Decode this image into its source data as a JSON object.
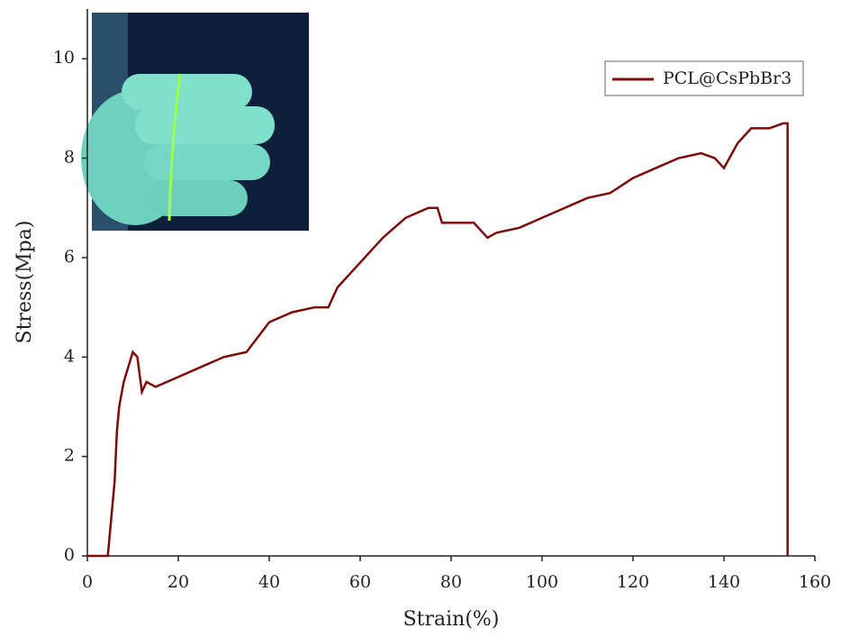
{
  "chart_data": {
    "type": "line",
    "x_label": "Strain(%)",
    "y_label": "Stress(Mpa)",
    "xlim": [
      0,
      160
    ],
    "xticks": [
      0,
      20,
      40,
      60,
      80,
      100,
      120,
      140,
      160
    ],
    "ylim": [
      0,
      11
    ],
    "yticks": [
      0,
      2,
      4,
      6,
      8,
      10
    ],
    "legend": "upper right",
    "series": [
      {
        "name": "PCL@CsPbBr3",
        "color": "#7f0a0a",
        "x": [
          0,
          4.5,
          5,
          6,
          6.5,
          7,
          8,
          9,
          10,
          11,
          12,
          13,
          15,
          20,
          25,
          30,
          35,
          40,
          45,
          50,
          53,
          55,
          60,
          65,
          70,
          75,
          77,
          78,
          80,
          85,
          88,
          90,
          95,
          100,
          105,
          110,
          115,
          120,
          125,
          130,
          135,
          138,
          140,
          143,
          146,
          150,
          153,
          154,
          154
        ],
        "values": [
          0,
          0,
          0.5,
          1.5,
          2.5,
          3,
          3.5,
          3.8,
          4.1,
          4.0,
          3.3,
          3.5,
          3.4,
          3.6,
          3.8,
          4.0,
          4.1,
          4.7,
          4.9,
          5.0,
          5.0,
          5.4,
          5.9,
          6.4,
          6.8,
          7.0,
          7.0,
          6.7,
          6.7,
          6.7,
          6.4,
          6.5,
          6.6,
          6.8,
          7.0,
          7.2,
          7.3,
          7.6,
          7.8,
          8.0,
          8.1,
          8.0,
          7.8,
          8.3,
          8.6,
          8.6,
          8.7,
          8.7,
          0
        ]
      }
    ]
  }
}
